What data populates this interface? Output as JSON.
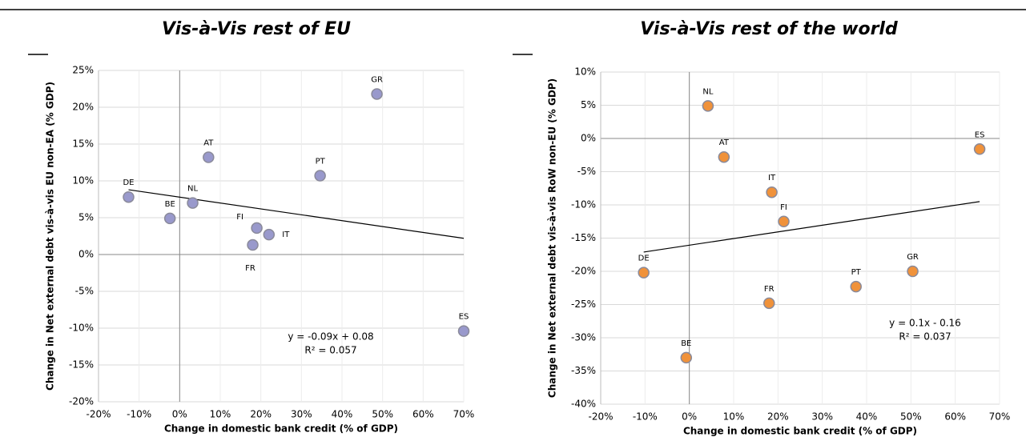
{
  "chart_data": [
    {
      "type": "scatter",
      "title": "Vis-à-Vis rest of EU",
      "x_label": "Change in domestic bank credit (% of GDP)",
      "y_label": "Change in Net external debt vis-à-vis EU non-EA (% GDP)",
      "labels": [
        "DE",
        "BE",
        "NL",
        "AT",
        "FI",
        "FR",
        "IT",
        "PT",
        "GR",
        "ES"
      ],
      "x": [
        -12.6,
        -2.4,
        3.2,
        7.1,
        19,
        18,
        22,
        34.6,
        48.6,
        70
      ],
      "values": [
        7.8,
        4.9,
        7,
        13.2,
        3.6,
        1.3,
        2.7,
        10.7,
        21.8,
        -10.4
      ],
      "color": "#9999cc",
      "trendline": {
        "x": [
          -12.6,
          70
        ],
        "y": [
          8.8,
          2.2
        ]
      },
      "annotations": [
        "y = -0.09x + 0.08",
        "R² = 0.057"
      ],
      "xlim": [
        -20,
        70
      ],
      "ylim": [
        -20,
        25
      ],
      "xticks": [
        {
          "value": -20,
          "label": "-20%"
        },
        {
          "value": -10,
          "label": "-10%"
        },
        {
          "value": 0,
          "label": "0%"
        },
        {
          "value": 10,
          "label": "10%"
        },
        {
          "value": 20,
          "label": "20%"
        },
        {
          "value": 30,
          "label": "30%"
        },
        {
          "value": 40,
          "label": "40%"
        },
        {
          "value": 50,
          "label": "50%"
        },
        {
          "value": 60,
          "label": "60%"
        },
        {
          "value": 70,
          "label": "70%"
        }
      ],
      "yticks": [
        {
          "value": -20,
          "label": "-20%"
        },
        {
          "value": -15,
          "label": "-15%"
        },
        {
          "value": -10,
          "label": "-10%"
        },
        {
          "value": -5,
          "label": "-5%"
        },
        {
          "value": 0,
          "label": "0%"
        },
        {
          "value": 5,
          "label": "5%"
        },
        {
          "value": 10,
          "label": "10%"
        },
        {
          "value": 15,
          "label": "15%"
        },
        {
          "value": 20,
          "label": "20%"
        },
        {
          "value": 25,
          "label": "25%"
        }
      ],
      "grid": true
    },
    {
      "type": "scatter",
      "title": "Vis-à-Vis rest of the world",
      "x_label": "Change in domestic bank credit (% of GDP)",
      "y_label": "Change in Net external debt vis-à-vis RoW non-EU (% GDP)",
      "labels": [
        "NL",
        "AT",
        "IT",
        "FI",
        "DE",
        "BE",
        "FR",
        "PT",
        "GR",
        "ES"
      ],
      "x": [
        4.2,
        7.8,
        18.6,
        21.3,
        -10.3,
        -0.7,
        18,
        37.6,
        50.4,
        65.5
      ],
      "values": [
        4.9,
        -2.8,
        -8.1,
        -12.5,
        -20.2,
        -33,
        -24.8,
        -22.3,
        -20,
        -1.6
      ],
      "color": "#f0923a",
      "trendline": {
        "x": [
          -10.3,
          65.5
        ],
        "y": [
          -17.1,
          -9.5
        ]
      },
      "annotations": [
        "y = 0.1x - 0.16",
        "R² = 0.037"
      ],
      "xlim": [
        -20,
        70
      ],
      "ylim": [
        -40,
        10
      ],
      "xticks": [
        {
          "value": -20,
          "label": "-20%"
        },
        {
          "value": -10,
          "label": "-10%"
        },
        {
          "value": 0,
          "label": "0%"
        },
        {
          "value": 10,
          "label": "10%"
        },
        {
          "value": 20,
          "label": "20%"
        },
        {
          "value": 30,
          "label": "30%"
        },
        {
          "value": 40,
          "label": "40%"
        },
        {
          "value": 50,
          "label": "50%"
        },
        {
          "value": 60,
          "label": "60%"
        },
        {
          "value": 70,
          "label": "70%"
        }
      ],
      "yticks": [
        {
          "value": -40,
          "label": "-40%"
        },
        {
          "value": -35,
          "label": "-35%"
        },
        {
          "value": -30,
          "label": "-30%"
        },
        {
          "value": -25,
          "label": "-25%"
        },
        {
          "value": -20,
          "label": "-20%"
        },
        {
          "value": -15,
          "label": "-15%"
        },
        {
          "value": -10,
          "label": "-10%"
        },
        {
          "value": -5,
          "label": "-5%"
        },
        {
          "value": 0,
          "label": "0%"
        },
        {
          "value": 5,
          "label": "5%"
        },
        {
          "value": 10,
          "label": "10%"
        }
      ],
      "grid": true
    }
  ]
}
